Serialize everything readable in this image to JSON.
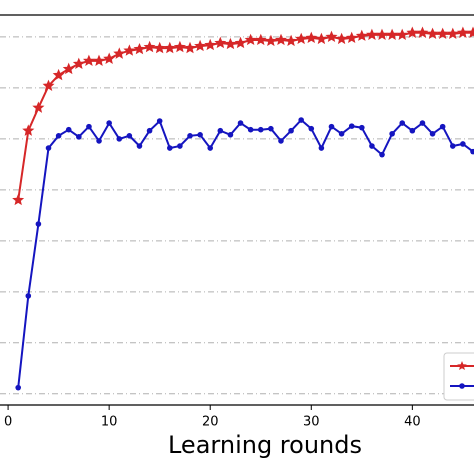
{
  "chart_data": {
    "type": "line",
    "xlabel": "Learning rounds",
    "x": [
      1,
      2,
      3,
      4,
      5,
      6,
      7,
      8,
      9,
      10,
      11,
      12,
      13,
      14,
      15,
      16,
      17,
      18,
      19,
      20,
      21,
      22,
      23,
      24,
      25,
      26,
      27,
      28,
      29,
      30,
      31,
      32,
      33,
      34,
      35,
      36,
      37,
      38,
      39,
      40,
      41,
      42,
      43,
      44,
      45,
      46
    ],
    "series": [
      {
        "color": "#d62728",
        "marker": "star",
        "values": [
          0.58,
          0.716,
          0.761,
          0.804,
          0.825,
          0.837,
          0.847,
          0.853,
          0.853,
          0.857,
          0.867,
          0.873,
          0.876,
          0.88,
          0.878,
          0.878,
          0.88,
          0.878,
          0.882,
          0.884,
          0.888,
          0.886,
          0.888,
          0.894,
          0.894,
          0.892,
          0.894,
          0.892,
          0.896,
          0.898,
          0.896,
          0.9,
          0.896,
          0.898,
          0.902,
          0.904,
          0.904,
          0.904,
          0.904,
          0.908,
          0.908,
          0.906,
          0.906,
          0.906,
          0.908,
          0.908
        ]
      },
      {
        "color": "#1515c0",
        "marker": "circle",
        "values": [
          0.212,
          0.392,
          0.533,
          0.682,
          0.706,
          0.718,
          0.704,
          0.724,
          0.696,
          0.731,
          0.7,
          0.706,
          0.686,
          0.716,
          0.735,
          0.682,
          0.686,
          0.706,
          0.708,
          0.682,
          0.716,
          0.708,
          0.731,
          0.718,
          0.718,
          0.72,
          0.696,
          0.716,
          0.737,
          0.72,
          0.682,
          0.724,
          0.71,
          0.725,
          0.722,
          0.686,
          0.669,
          0.71,
          0.731,
          0.716,
          0.731,
          0.71,
          0.724,
          0.686,
          0.69,
          0.675
        ]
      }
    ],
    "xlim": [
      -0.8,
      46.1
    ],
    "xticks": [
      0,
      10,
      20,
      30,
      40
    ],
    "ylim": [
      0.178,
      0.943
    ],
    "ygrid": [
      0.2,
      0.3,
      0.4,
      0.5,
      0.6,
      0.7,
      0.8,
      0.9
    ],
    "legend": "lower right"
  }
}
